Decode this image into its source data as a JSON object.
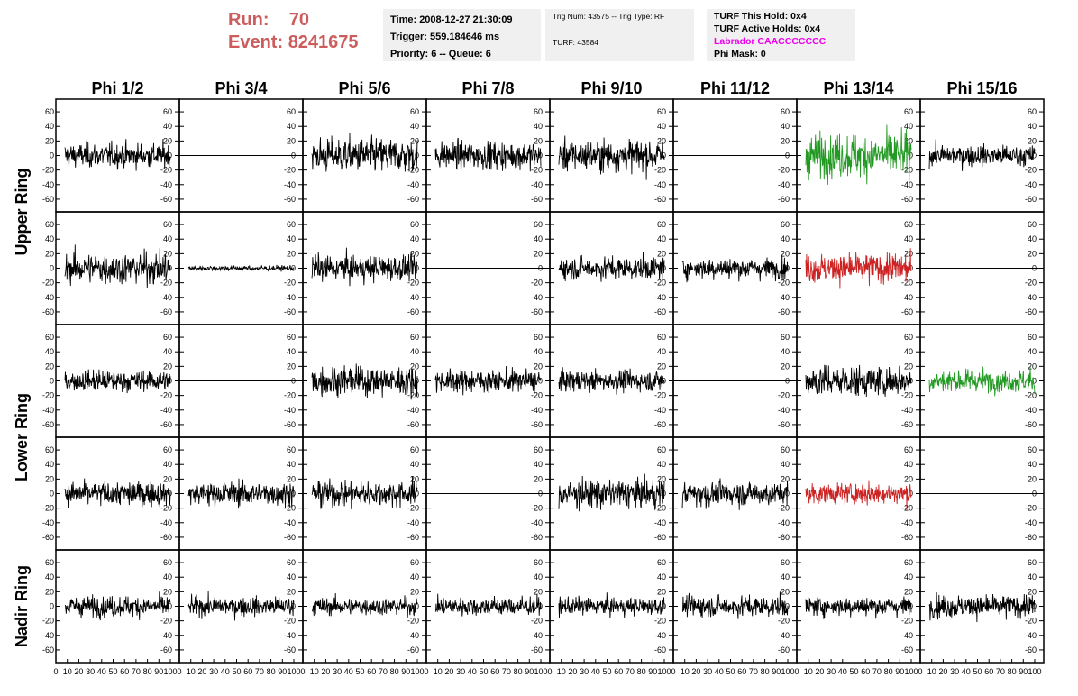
{
  "header": {
    "run_label": "Run:",
    "run_value": "70",
    "event_label": "Event:",
    "event_value": "8241675",
    "time": "Time: 2008-12-27 21:30:09",
    "trigger": "Trigger: 559.184646 ms",
    "priority": "Priority: 6 -- Queue: 6",
    "trig_num": "Trig Num: 43575 -- Trig Type: RF",
    "turf": "TURF: 43584",
    "turf_this_hold": "TURF This Hold: 0x4",
    "turf_active_holds": "TURF Active Holds: 0x4",
    "labrador": "Labrador CAACCCCCCC",
    "phi_mask": "Phi Mask: 0"
  },
  "colors": {
    "header_red": "#cd5c5c",
    "labrador_magenta": "#ee00ee",
    "box_bg": "#f0f0f0",
    "trace_black": "#000000",
    "trace_green": "#229922",
    "trace_red": "#cc2222"
  },
  "chart_data": {
    "type": "line",
    "columns": [
      "Phi 1/2",
      "Phi 3/4",
      "Phi 5/6",
      "Phi 7/8",
      "Phi 9/10",
      "Phi 11/12",
      "Phi 13/14",
      "Phi 15/16"
    ],
    "row_labels": [
      "Upper Ring",
      "Lower Ring",
      "Nadir Ring"
    ],
    "rows": 5,
    "xlim": [
      0,
      100
    ],
    "ylim": [
      -70,
      70
    ],
    "yticks": [
      -60,
      -40,
      -20,
      0,
      20,
      40,
      60
    ],
    "xticks_label_text": [
      "0",
      "10",
      "20",
      "30",
      "40",
      "50",
      "60",
      "70",
      "80",
      "90",
      "100"
    ],
    "grid": false,
    "waveform_amplitude": [
      [
        14,
        0,
        20,
        16,
        18,
        0,
        25,
        12
      ],
      [
        18,
        3,
        15,
        0,
        13,
        12,
        17,
        0
      ],
      [
        12,
        0,
        17,
        13,
        12,
        0,
        18,
        13
      ],
      [
        14,
        14,
        15,
        0,
        17,
        14,
        12,
        0
      ],
      [
        12,
        11,
        10,
        11,
        10,
        12,
        11,
        13
      ]
    ],
    "waveform_color": [
      [
        "black",
        "black",
        "black",
        "black",
        "black",
        "black",
        "green",
        "black"
      ],
      [
        "black",
        "black",
        "black",
        "black",
        "black",
        "black",
        "red",
        "black"
      ],
      [
        "black",
        "black",
        "black",
        "black",
        "black",
        "black",
        "black",
        "green"
      ],
      [
        "black",
        "black",
        "black",
        "black",
        "black",
        "black",
        "red",
        "black"
      ],
      [
        "black",
        "black",
        "black",
        "black",
        "black",
        "black",
        "black",
        "black"
      ]
    ],
    "waveform_note": "sampled noise traces; flat lines at 0 where amplitude is 0"
  }
}
